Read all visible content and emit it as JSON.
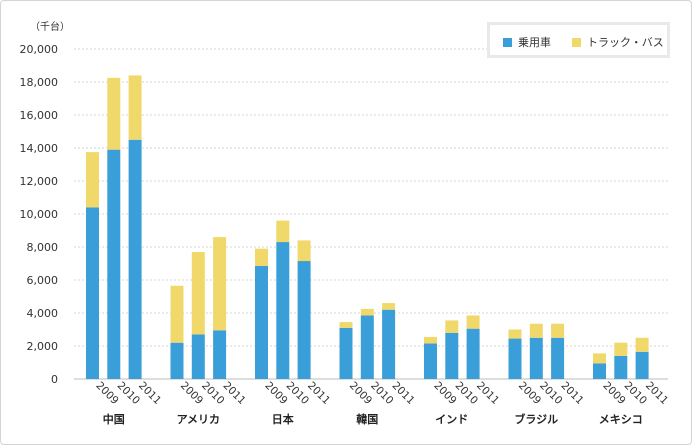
{
  "chart_data": {
    "type": "bar",
    "stacked": true,
    "unit_label": "（千台）",
    "categories": [
      "中国",
      "アメリカ",
      "日本",
      "韓国",
      "インド",
      "ブラジル",
      "メキシコ"
    ],
    "years": [
      "2009",
      "2010",
      "2011"
    ],
    "series": [
      {
        "name": "乗用車",
        "color": "#3a9fd8",
        "values": [
          [
            10400,
            13900,
            14500
          ],
          [
            2200,
            2700,
            2950
          ],
          [
            6850,
            8300,
            7150
          ],
          [
            3100,
            3850,
            4200
          ],
          [
            2150,
            2800,
            3050
          ],
          [
            2450,
            2500,
            2500
          ],
          [
            950,
            1400,
            1650
          ]
        ]
      },
      {
        "name": "トラック・バス",
        "color": "#f0d86a",
        "values": [
          [
            3350,
            4350,
            3900
          ],
          [
            3450,
            5000,
            5650
          ],
          [
            1050,
            1300,
            1250
          ],
          [
            350,
            400,
            400
          ],
          [
            400,
            750,
            800
          ],
          [
            550,
            850,
            850
          ],
          [
            600,
            800,
            850
          ]
        ]
      }
    ],
    "ylim": [
      0,
      20000
    ],
    "yticks": [
      "0",
      "2,000",
      "4,000",
      "6,000",
      "8,000",
      "10,000",
      "12,000",
      "14,000",
      "16,000",
      "18,000",
      "20,000"
    ],
    "legend_position": "top-right"
  }
}
